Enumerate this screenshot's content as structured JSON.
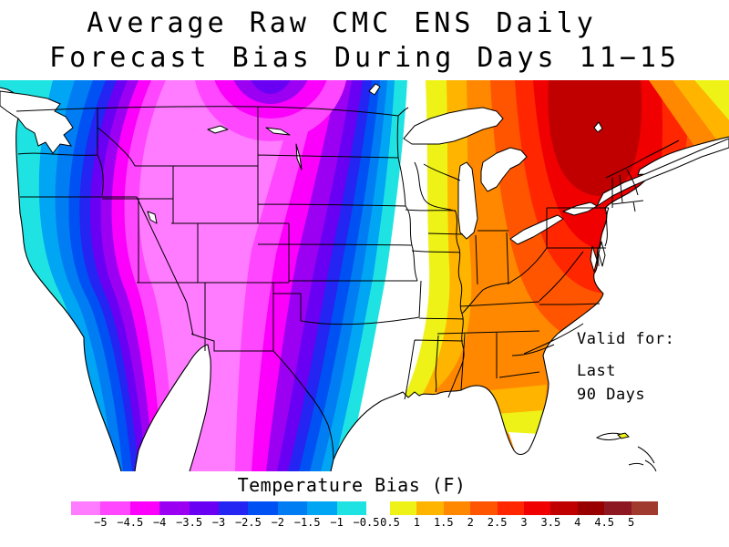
{
  "title": {
    "line1": "Average Raw CMC ENS Daily",
    "line2": "Forecast Bias During Days 11−15"
  },
  "annotation": {
    "line1": "Valid for:",
    "line2": "Last",
    "line3": "90 Days"
  },
  "colorbar": {
    "title": "Temperature Bias (F)",
    "negative": {
      "colors": [
        "#ff7bff",
        "#ff47ff",
        "#fb00fb",
        "#9c00f3",
        "#6900f3",
        "#2424f3",
        "#0051f3",
        "#007df3",
        "#00a5f3",
        "#1fe3e3"
      ],
      "labels": [
        "−5",
        "−4.5",
        "−4",
        "−3.5",
        "−3",
        "−2.5",
        "−2",
        "−1.5",
        "−1",
        "−0.5"
      ]
    },
    "positive": {
      "colors": [
        "#eef216",
        "#ffb400",
        "#ff8800",
        "#ff5500",
        "#ff2600",
        "#f00000",
        "#c00000",
        "#980000",
        "#8e1822",
        "#a03a2e"
      ],
      "labels": [
        "0.5",
        "1",
        "1.5",
        "2",
        "2.5",
        "3",
        "3.5",
        "4",
        "4.5",
        "5"
      ]
    },
    "neutral_color": "#ffffff"
  },
  "chart_data": {
    "type": "heatmap",
    "title": "Average Raw CMC ENS Daily Forecast Bias During Days 11-15",
    "legend_title": "Temperature Bias (F)",
    "units": "F",
    "region": "Continental United States with southern Canada and northern Mexico",
    "levels": [
      -5,
      -4.5,
      -4,
      -3.5,
      -3,
      -2.5,
      -2,
      -1.5,
      -1,
      -0.5,
      0.5,
      1,
      1.5,
      2,
      2.5,
      3,
      3.5,
      4,
      4.5,
      5
    ],
    "valid_period": "Last 90 Days",
    "features": [
      {
        "area": "Interior West / Rockies / Great Basin / Southwest",
        "bias": "below -5 (strong cold bias, light pink)"
      },
      {
        "area": "Pacific Coast",
        "bias": "-0.5 to -2 (cyan and light blue coastal strip)"
      },
      {
        "area": "Montana / North Dakota border at top edge",
        "bias": "local pocket near -3 to -3.5 (blue-violet core ringed by purple and magenta)"
      },
      {
        "area": "Central Plains west-to-east gradient",
        "bias": "-5 rising to -0.5 across Kansas/Oklahoma/Texas"
      },
      {
        "area": "Mississippi Valley vertical band",
        "bias": "-0.5 to +0.5 (neutral white band)"
      },
      {
        "area": "Lower Mississippi / Louisiana / south Florida tip",
        "bias": "+0.5 to +1 (yellow)"
      },
      {
        "area": "Southeast / Gulf states / Florida",
        "bias": "+1.5 to +2.5 (orange)"
      },
      {
        "area": "Mid-Atlantic / Ohio Valley / New England",
        "bias": "+2.5 to +3.5 (red-orange to red)"
      },
      {
        "area": "Ontario north of the Great Lakes",
        "bias": "maximum near +3.5 to +4 (dark red core)"
      },
      {
        "area": "Far northeast corner (Quebec/Maritimes)",
        "bias": "falls back to +0.5 to +1.5 (yellow/amber at corner)"
      }
    ]
  }
}
